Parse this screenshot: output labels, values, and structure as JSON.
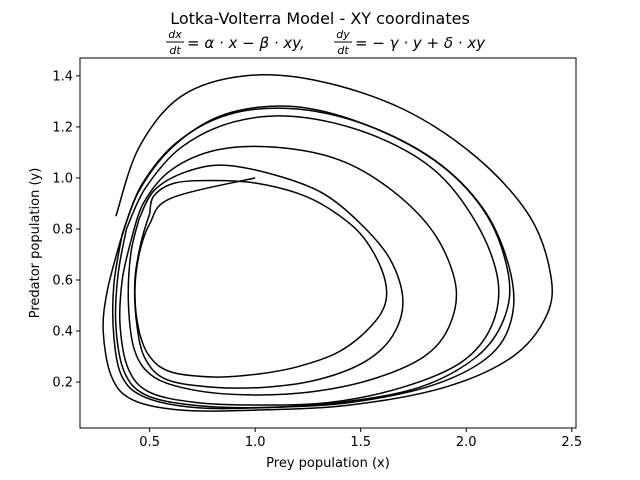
{
  "chart_data": {
    "type": "line",
    "title": "Lotka-Volterra Model - XY coordinates",
    "subtitle": {
      "lhs1_num": "dx",
      "lhs1_den": "dt",
      "rhs1": "= α · x − β · xy,",
      "lhs2_num": "dy",
      "lhs2_den": "dt",
      "rhs2": "= − γ · y + δ · xy"
    },
    "xlabel": "Prey population (x)",
    "ylabel": "Predator population (y)",
    "xlim": [
      0.17,
      2.52
    ],
    "ylim": [
      0.02,
      1.47
    ],
    "xticks": [
      0.5,
      1.0,
      1.5,
      2.0,
      2.5
    ],
    "xtick_labels": [
      "0.5",
      "1.0",
      "1.5",
      "2.0",
      "2.5"
    ],
    "yticks": [
      0.2,
      0.4,
      0.6,
      0.8,
      1.0,
      1.2,
      1.4
    ],
    "ytick_labels": [
      "0.2",
      "0.4",
      "0.6",
      "0.8",
      "1.0",
      "1.2",
      "1.4"
    ],
    "grid": false,
    "line_color": "#000000",
    "series": [
      {
        "values": {
          "x": [
            1.0,
            0.6,
            0.5,
            0.45,
            0.43,
            0.45,
            0.5,
            0.6,
            0.8,
            1.0,
            1.2,
            1.4,
            1.55,
            1.62,
            1.6,
            1.5,
            1.35,
            1.2,
            1.0,
            0.8,
            0.62,
            0.52,
            0.5
          ],
          "y": [
            1.0,
            0.92,
            0.82,
            0.7,
            0.55,
            0.4,
            0.3,
            0.24,
            0.22,
            0.23,
            0.26,
            0.32,
            0.42,
            0.52,
            0.64,
            0.78,
            0.88,
            0.94,
            0.98,
            0.99,
            0.98,
            0.93,
            0.86
          ]
        }
      },
      {
        "values": {
          "x": [
            0.5,
            0.46,
            0.43,
            0.44,
            0.48,
            0.58,
            0.8,
            1.05,
            1.3,
            1.52,
            1.65,
            1.7,
            1.64,
            1.5,
            1.32,
            1.1,
            0.85,
            0.66,
            0.52,
            0.45
          ],
          "y": [
            0.86,
            0.75,
            0.6,
            0.42,
            0.29,
            0.21,
            0.18,
            0.18,
            0.21,
            0.28,
            0.38,
            0.52,
            0.68,
            0.82,
            0.94,
            1.01,
            1.05,
            1.02,
            0.95,
            0.84
          ]
        }
      },
      {
        "values": {
          "x": [
            0.45,
            0.41,
            0.4,
            0.43,
            0.52,
            0.7,
            0.95,
            1.25,
            1.55,
            1.8,
            1.92,
            1.95,
            1.85,
            1.65,
            1.4,
            1.1,
            0.82,
            0.6,
            0.47,
            0.41
          ],
          "y": [
            0.84,
            0.7,
            0.5,
            0.32,
            0.22,
            0.17,
            0.15,
            0.16,
            0.21,
            0.3,
            0.42,
            0.58,
            0.78,
            0.95,
            1.07,
            1.12,
            1.11,
            1.03,
            0.9,
            0.75
          ]
        }
      },
      {
        "values": {
          "x": [
            0.41,
            0.37,
            0.36,
            0.4,
            0.5,
            0.72,
            1.0,
            1.35,
            1.7,
            1.98,
            2.12,
            2.15,
            2.05,
            1.85,
            1.55,
            1.2,
            0.9,
            0.65,
            0.48,
            0.39
          ],
          "y": [
            0.75,
            0.6,
            0.42,
            0.25,
            0.16,
            0.12,
            0.11,
            0.12,
            0.18,
            0.28,
            0.42,
            0.6,
            0.82,
            1.03,
            1.17,
            1.24,
            1.22,
            1.12,
            0.96,
            0.8
          ]
        }
      },
      {
        "values": {
          "x": [
            0.39,
            0.35,
            0.34,
            0.38,
            0.48,
            0.7,
            1.0,
            1.4,
            1.78,
            2.05,
            2.18,
            2.2,
            2.1,
            1.88,
            1.55,
            1.2,
            0.88,
            0.63,
            0.46,
            0.37
          ],
          "y": [
            0.8,
            0.62,
            0.42,
            0.24,
            0.15,
            0.11,
            0.1,
            0.12,
            0.18,
            0.3,
            0.45,
            0.62,
            0.85,
            1.05,
            1.2,
            1.27,
            1.25,
            1.14,
            0.97,
            0.78
          ]
        }
      },
      {
        "values": {
          "x": [
            0.37,
            0.33,
            0.33,
            0.37,
            0.48,
            0.72,
            1.05,
            1.45,
            1.85,
            2.12,
            2.22,
            2.2,
            2.08,
            1.85,
            1.52,
            1.18,
            0.86,
            0.62,
            0.45,
            0.36
          ],
          "y": [
            0.78,
            0.58,
            0.38,
            0.22,
            0.14,
            0.1,
            0.1,
            0.12,
            0.19,
            0.31,
            0.47,
            0.66,
            0.88,
            1.07,
            1.21,
            1.28,
            1.25,
            1.13,
            0.95,
            0.75
          ]
        }
      },
      {
        "values": {
          "x": [
            0.36,
            0.3,
            0.28,
            0.32,
            0.42,
            0.65,
            1.0,
            1.45,
            1.9,
            2.22,
            2.38,
            2.4,
            2.3,
            2.05,
            1.7,
            1.3,
            0.95,
            0.65,
            0.45,
            0.34
          ],
          "y": [
            0.75,
            0.56,
            0.4,
            0.22,
            0.13,
            0.09,
            0.09,
            0.11,
            0.18,
            0.3,
            0.46,
            0.62,
            0.85,
            1.08,
            1.27,
            1.38,
            1.4,
            1.32,
            1.12,
            0.85
          ]
        }
      }
    ]
  }
}
